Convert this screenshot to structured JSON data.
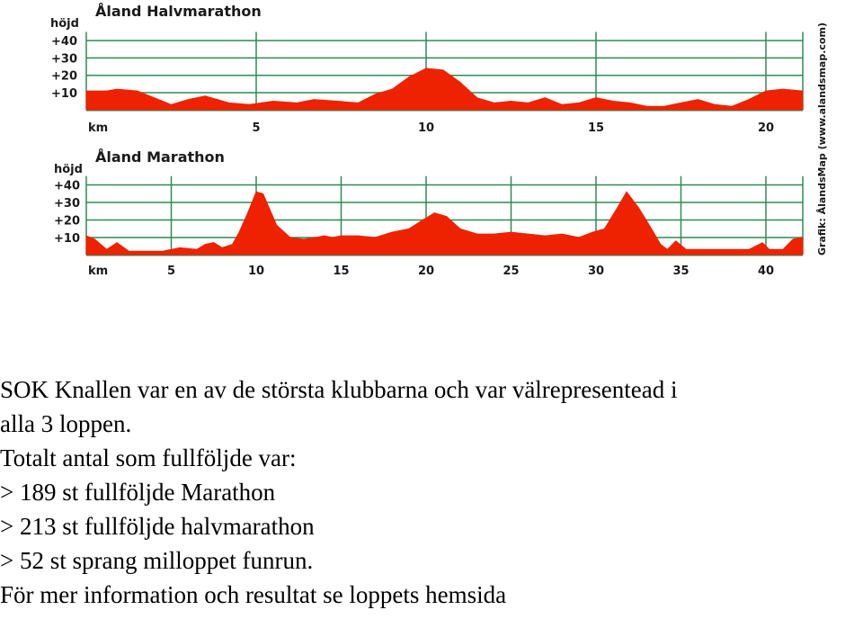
{
  "credit": "Grafik: ÅlandsMap (www.alandsmap.com)",
  "colors": {
    "fill": "#ee2200",
    "grid": "#2e8b57",
    "text": "#1a1a1a"
  },
  "chart_data": [
    {
      "type": "area",
      "title": "Åland Halvmarathon",
      "ylabel": "höjd",
      "yticks": [
        "+40",
        "+30",
        "+20",
        "+10"
      ],
      "ytick_values": [
        40,
        30,
        20,
        10
      ],
      "xlabel": "km",
      "xticks": [
        5,
        10,
        15,
        20
      ],
      "xlim": [
        0,
        21.1
      ],
      "ylim": [
        0,
        45
      ],
      "grid": true,
      "x": [
        0,
        0.6,
        0.9,
        1.5,
        2.0,
        2.5,
        3.0,
        3.5,
        4.2,
        4.8,
        5.5,
        6.2,
        6.7,
        7.4,
        8.0,
        8.5,
        9.0,
        9.5,
        10.0,
        10.5,
        11.0,
        11.5,
        12.0,
        12.5,
        13.0,
        13.5,
        14.0,
        14.5,
        15.0,
        15.5,
        16.0,
        16.5,
        17.0,
        17.5,
        18.0,
        18.5,
        19.0,
        19.5,
        20.0,
        20.5,
        21.1
      ],
      "y": [
        11,
        11,
        12,
        11,
        7,
        3,
        6,
        8,
        4,
        3,
        5,
        4,
        6,
        5,
        4,
        9,
        12,
        19,
        24,
        23,
        16,
        7,
        4,
        5,
        4,
        7,
        3,
        4,
        7,
        5,
        4,
        2,
        2,
        4,
        6,
        3,
        2,
        6,
        11,
        12,
        11
      ]
    },
    {
      "type": "area",
      "title": "Åland Marathon",
      "ylabel": "höjd",
      "yticks": [
        "+40",
        "+30",
        "+20",
        "+10"
      ],
      "ytick_values": [
        40,
        30,
        20,
        10
      ],
      "xlabel": "km",
      "xticks": [
        5,
        10,
        15,
        20,
        25,
        30,
        35,
        40
      ],
      "xlim": [
        0,
        42.2
      ],
      "ylim": [
        0,
        45
      ],
      "grid": true,
      "x": [
        0,
        0.5,
        1.2,
        1.8,
        2.5,
        3.2,
        3.8,
        4.5,
        5.5,
        6.5,
        7.0,
        7.5,
        8.0,
        8.6,
        9.0,
        9.5,
        10.0,
        10.4,
        10.8,
        11.2,
        12.0,
        12.8,
        13.5,
        14.0,
        14.5,
        15.0,
        16.0,
        17.0,
        18.0,
        19.0,
        19.8,
        20.5,
        21.2,
        22.0,
        23.0,
        24.0,
        25.0,
        26.0,
        27.0,
        28.0,
        29.0,
        29.8,
        30.5,
        31.2,
        31.8,
        32.5,
        33.2,
        33.8,
        34.2,
        34.7,
        35.3,
        36.0,
        37.0,
        38.0,
        39.0,
        39.8,
        40.2,
        41.0,
        41.6,
        42.2
      ],
      "y": [
        11,
        9,
        3,
        7,
        2,
        2,
        2,
        2,
        4,
        3,
        6,
        7,
        4,
        6,
        13,
        24,
        36,
        35,
        26,
        17,
        10,
        9,
        10,
        11,
        10,
        11,
        11,
        10,
        13,
        15,
        20,
        24,
        22,
        15,
        12,
        12,
        13,
        12,
        11,
        12,
        10,
        13,
        15,
        26,
        36,
        27,
        16,
        6,
        3,
        8,
        3,
        3,
        3,
        3,
        3,
        7,
        3,
        3,
        9,
        10
      ]
    }
  ],
  "body_lines": [
    "SOK Knallen var en av de största klubbarna och var välrepresentead i",
    "alla 3 loppen.",
    "Totalt antal som fullföljde var:",
    "> 189 st fullföljde Marathon",
    "> 213 st fullföljde halvmarathon",
    "> 52 st  sprang milloppet funrun.",
    "För mer information och resultat se loppets hemsida"
  ]
}
